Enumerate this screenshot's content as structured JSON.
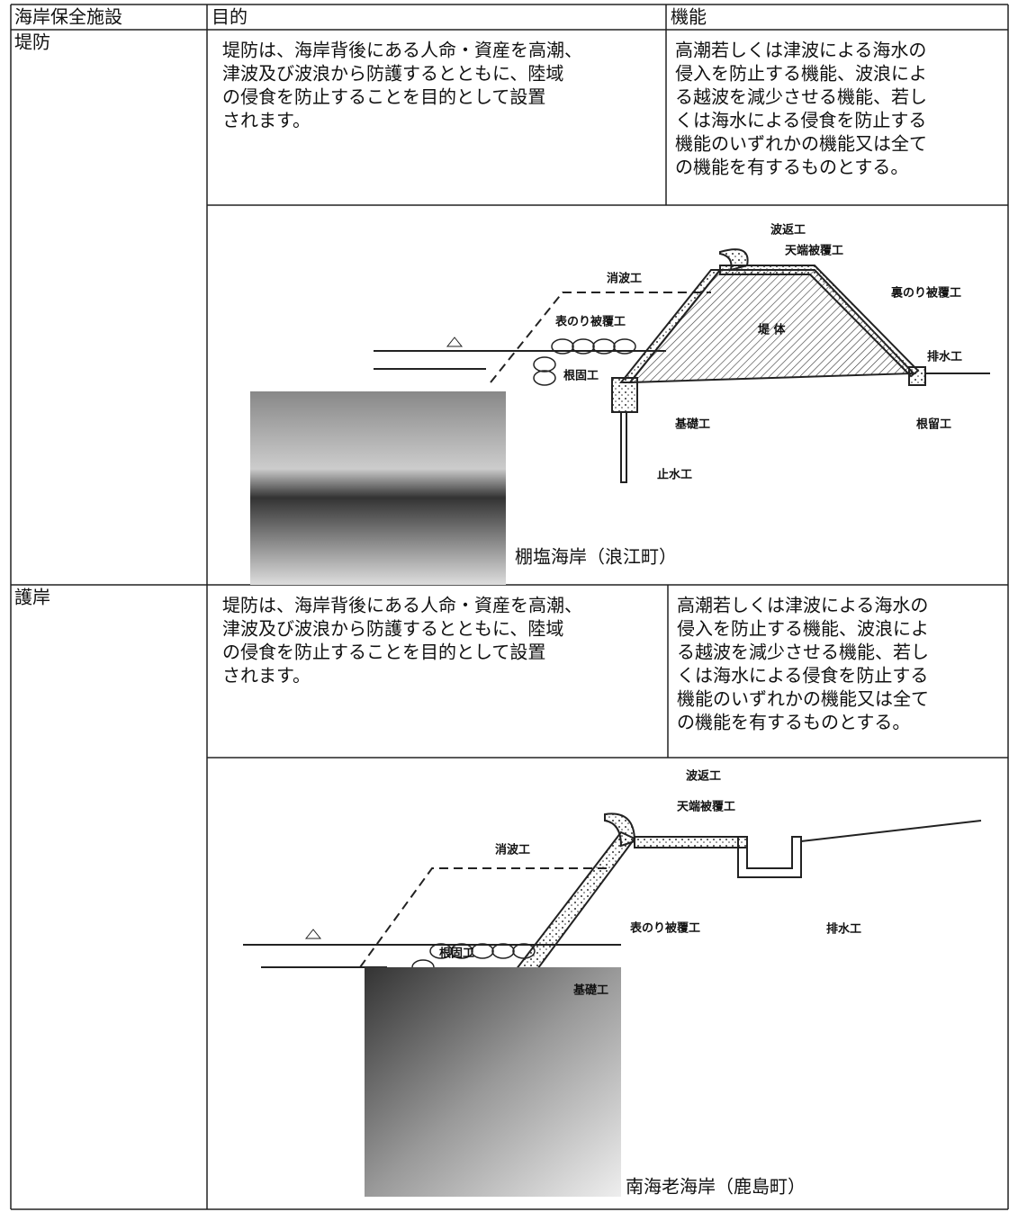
{
  "table": {
    "headers": [
      "海岸保全施設",
      "目的",
      "機能"
    ],
    "rows": [
      {
        "name": "堤防",
        "purpose": [
          "堤防は、海岸背後にある人命・資産を高潮、",
          "津波及び波浪から防護するとともに、陸域",
          "の侵食を防止することを目的として設置",
          "されます。"
        ],
        "function": [
          "高潮若しくは津波による海水の",
          "侵入を防止する機能、波浪によ",
          "る越波を減少させる機能、若し",
          "くは海水による侵食を防止する",
          "機能のいずれかの機能又は全て",
          "の機能を有するものとする。"
        ],
        "diagram_labels": [
          "波返工",
          "天端被覆工",
          "消波工",
          "裏のり被覆工",
          "表のり被覆工",
          "堤 体",
          "排水工",
          "根固工",
          "基礎工",
          "根留工",
          "止水工"
        ],
        "photo_caption": "棚塩海岸（浪江町）"
      },
      {
        "name": "護岸",
        "purpose": [
          "堤防は、海岸背後にある人命・資産を高潮、",
          "津波及び波浪から防護するとともに、陸域",
          "の侵食を防止することを目的として設置",
          "されます。"
        ],
        "function": [
          "高潮若しくは津波による海水の",
          "侵入を防止する機能、波浪によ",
          "る越波を減少させる機能、若し",
          "くは海水による侵食を防止する",
          "機能のいずれかの機能又は全て",
          "の機能を有するものとする。"
        ],
        "diagram_labels": [
          "波返工",
          "天端被覆工",
          "消波工",
          "表のり被覆工",
          "排水工",
          "根固工",
          "基礎工"
        ],
        "photo_caption": "南海老海岸（鹿島町）"
      }
    ]
  }
}
